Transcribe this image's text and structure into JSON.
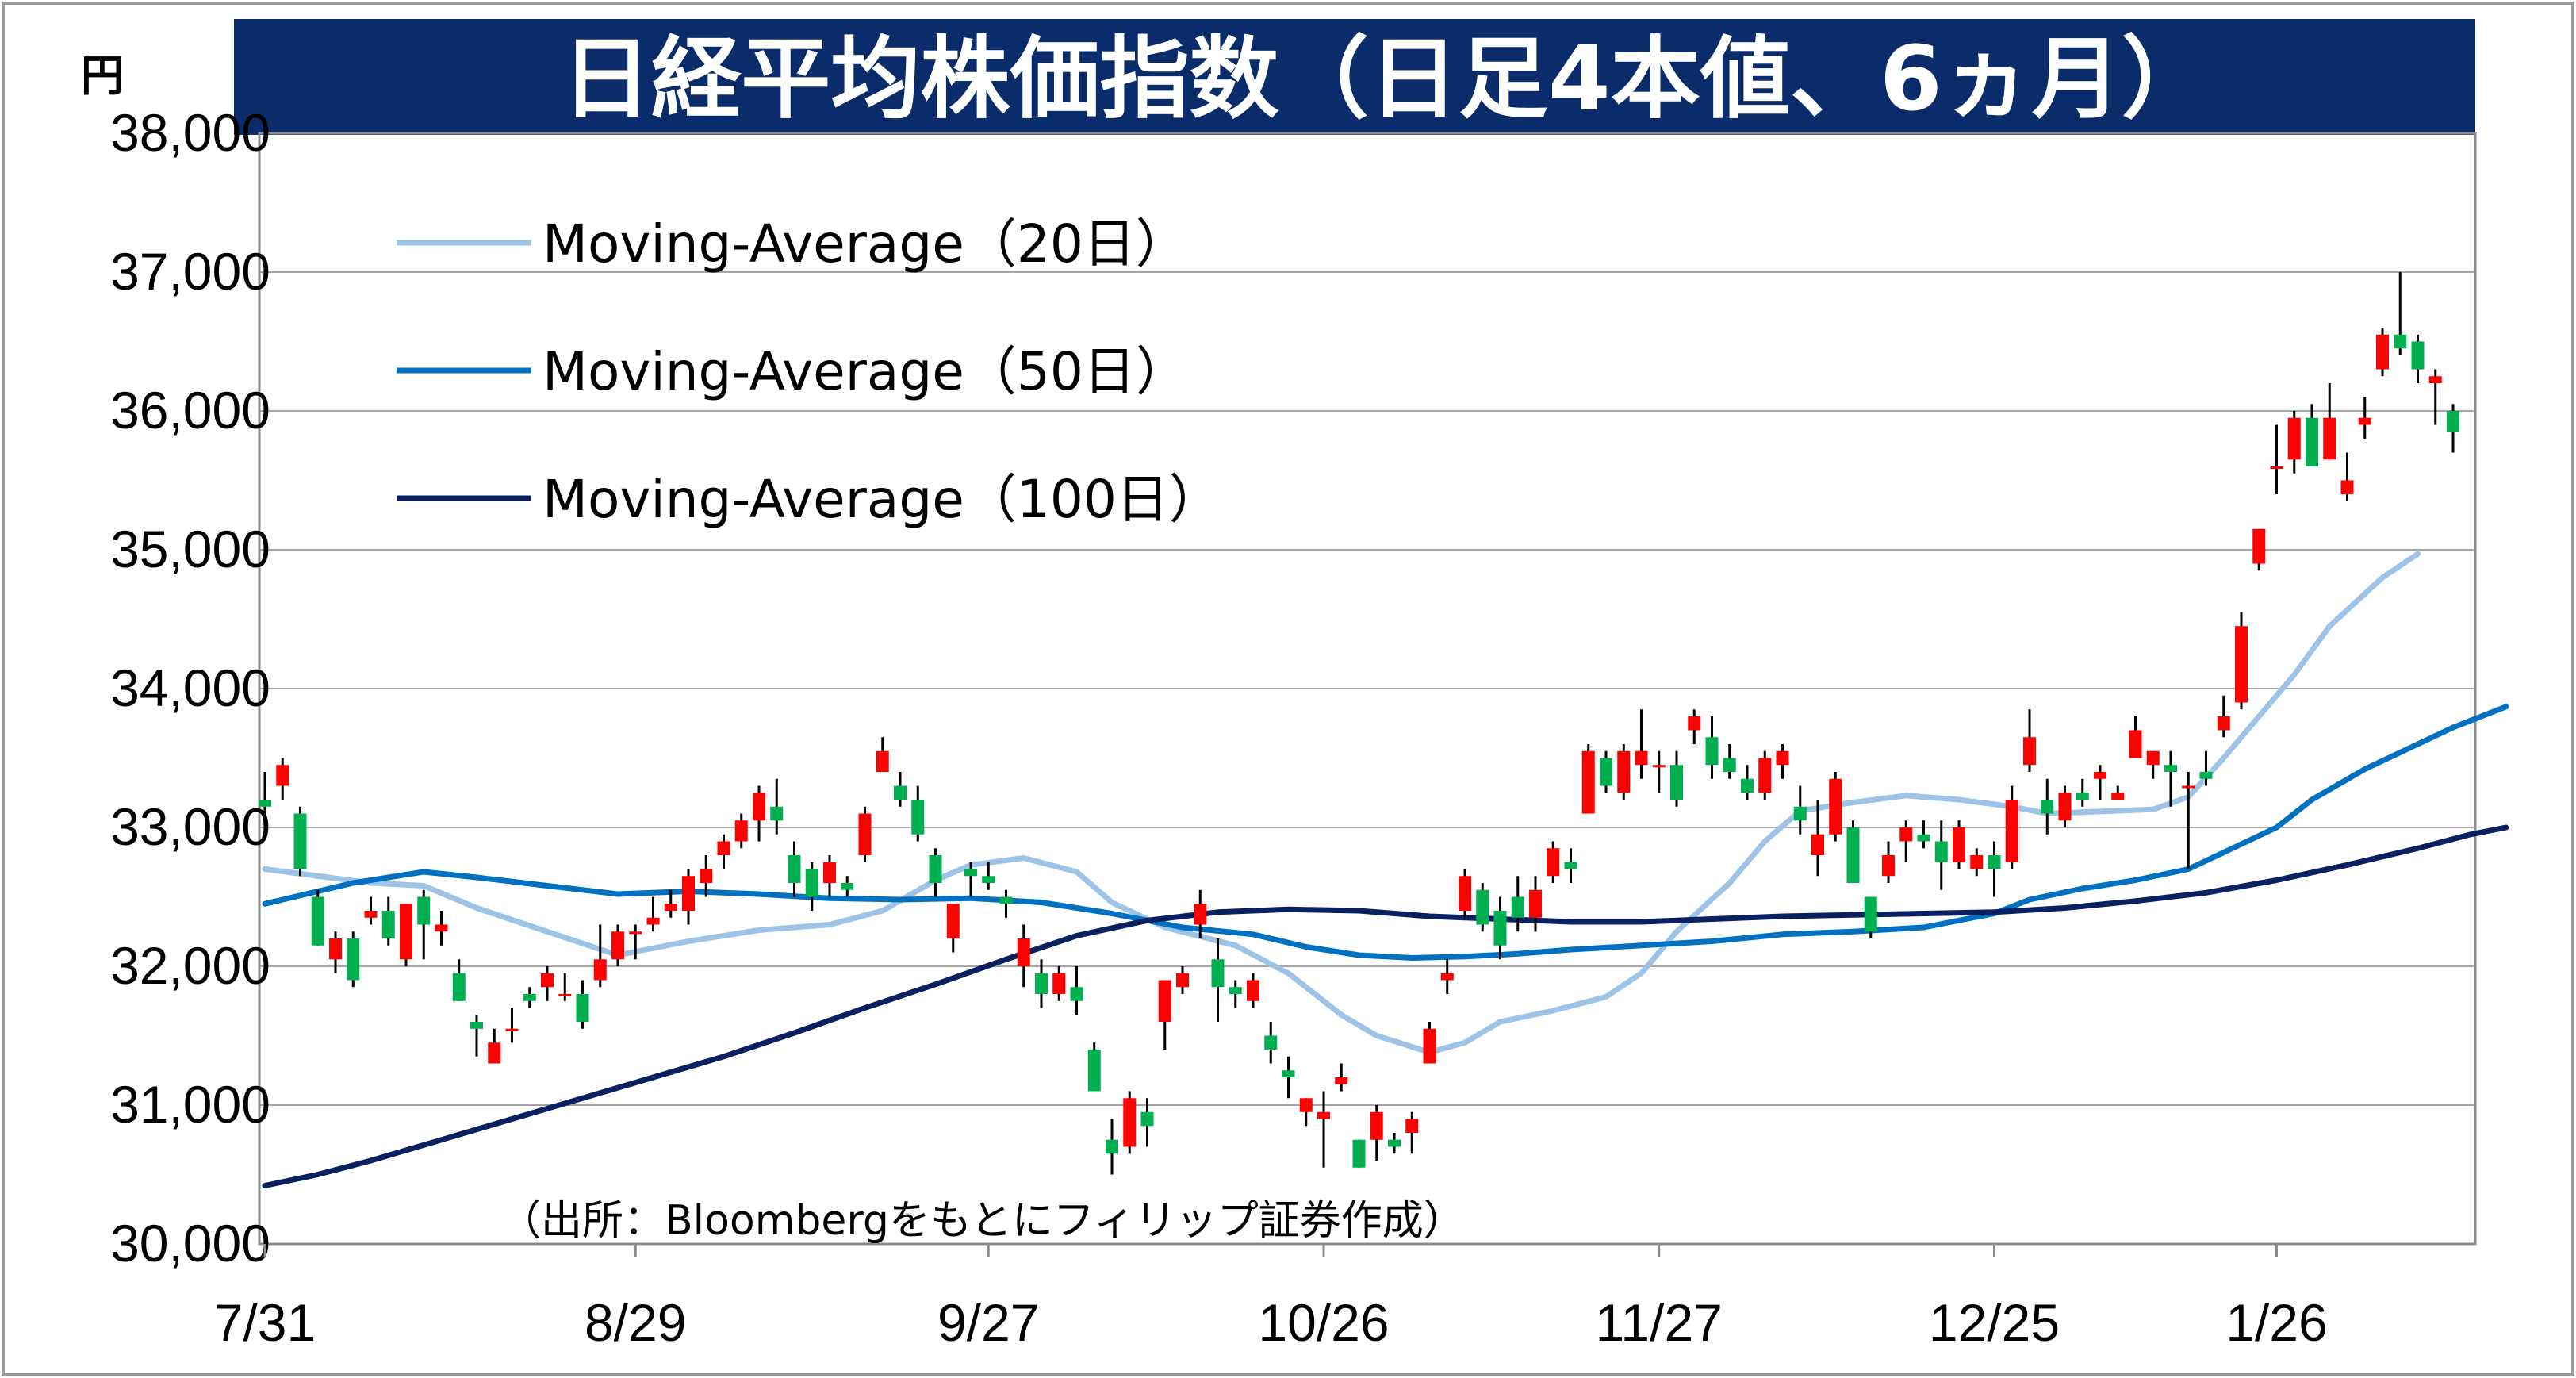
{
  "chart_data": {
    "type": "candlestick",
    "title": "日経平均株価指数（日足4本値、6ヵ月）",
    "y_unit": "円",
    "ylim": [
      30000,
      38000
    ],
    "yticks": [
      "30,000",
      "31,000",
      "32,000",
      "33,000",
      "34,000",
      "35,000",
      "36,000",
      "37,000",
      "38,000"
    ],
    "xticks": [
      {
        "label": "7/31",
        "index": 0
      },
      {
        "label": "8/29",
        "index": 21
      },
      {
        "label": "9/27",
        "index": 41
      },
      {
        "label": "10/26",
        "index": 60
      },
      {
        "label": "11/27",
        "index": 79
      },
      {
        "label": "12/25",
        "index": 98
      },
      {
        "label": "1/26",
        "index": 114
      }
    ],
    "grid": true,
    "legend_position": "top-left",
    "source": "（出所：Bloombergをもとにフィリップ証券作成）",
    "colors": {
      "up": "#ff0000",
      "down": "#00b050",
      "ma20": "#9dc3e6",
      "ma50": "#0070c0",
      "ma100": "#0b2060",
      "title_bg": "#0b2c6b"
    },
    "series": [
      {
        "name": "Moving-Average（20日）",
        "color": "#9dc3e6",
        "values": [
          [
            0,
            32700
          ],
          [
            6,
            32600
          ],
          [
            9,
            32580
          ],
          [
            12,
            32420
          ],
          [
            16,
            32250
          ],
          [
            20,
            32080
          ],
          [
            24,
            32180
          ],
          [
            28,
            32260
          ],
          [
            32,
            32300
          ],
          [
            35,
            32400
          ],
          [
            38,
            32620
          ],
          [
            40,
            32730
          ],
          [
            43,
            32780
          ],
          [
            46,
            32680
          ],
          [
            48,
            32460
          ],
          [
            51,
            32280
          ],
          [
            55,
            32150
          ],
          [
            58,
            31950
          ],
          [
            61,
            31650
          ],
          [
            63,
            31500
          ],
          [
            66,
            31380
          ],
          [
            68,
            31450
          ],
          [
            70,
            31600
          ],
          [
            73,
            31680
          ],
          [
            76,
            31780
          ],
          [
            78,
            31950
          ],
          [
            80,
            32250
          ],
          [
            83,
            32600
          ],
          [
            85,
            32900
          ],
          [
            87,
            33120
          ],
          [
            90,
            33180
          ],
          [
            93,
            33230
          ],
          [
            96,
            33200
          ],
          [
            99,
            33150
          ],
          [
            101,
            33100
          ],
          [
            103,
            33110
          ],
          [
            105,
            33120
          ],
          [
            107,
            33130
          ],
          [
            109,
            33220
          ],
          [
            111,
            33500
          ],
          [
            113,
            33800
          ],
          [
            115,
            34100
          ],
          [
            117,
            34450
          ],
          [
            120,
            34800
          ],
          [
            122,
            34970
          ]
        ]
      },
      {
        "name": "Moving-Average（50日）",
        "color": "#0070c0",
        "values": [
          [
            0,
            32450
          ],
          [
            5,
            32600
          ],
          [
            9,
            32680
          ],
          [
            12,
            32640
          ],
          [
            16,
            32580
          ],
          [
            20,
            32520
          ],
          [
            24,
            32540
          ],
          [
            28,
            32520
          ],
          [
            32,
            32490
          ],
          [
            36,
            32480
          ],
          [
            40,
            32490
          ],
          [
            44,
            32460
          ],
          [
            48,
            32380
          ],
          [
            52,
            32280
          ],
          [
            56,
            32230
          ],
          [
            59,
            32140
          ],
          [
            62,
            32080
          ],
          [
            65,
            32060
          ],
          [
            68,
            32070
          ],
          [
            71,
            32090
          ],
          [
            74,
            32120
          ],
          [
            78,
            32150
          ],
          [
            82,
            32180
          ],
          [
            86,
            32230
          ],
          [
            90,
            32250
          ],
          [
            94,
            32280
          ],
          [
            98,
            32380
          ],
          [
            100,
            32480
          ],
          [
            103,
            32560
          ],
          [
            106,
            32620
          ],
          [
            109,
            32700
          ],
          [
            111,
            32820
          ],
          [
            114,
            33000
          ],
          [
            116,
            33200
          ],
          [
            119,
            33420
          ],
          [
            122,
            33600
          ],
          [
            124,
            33720
          ],
          [
            127,
            33870
          ]
        ]
      },
      {
        "name": "Moving-Average（100日）",
        "color": "#0b2060",
        "values": [
          [
            0,
            30420
          ],
          [
            3,
            30500
          ],
          [
            6,
            30600
          ],
          [
            10,
            30750
          ],
          [
            14,
            30900
          ],
          [
            18,
            31050
          ],
          [
            22,
            31200
          ],
          [
            26,
            31350
          ],
          [
            30,
            31520
          ],
          [
            34,
            31700
          ],
          [
            38,
            31870
          ],
          [
            42,
            32050
          ],
          [
            46,
            32220
          ],
          [
            50,
            32330
          ],
          [
            54,
            32390
          ],
          [
            58,
            32410
          ],
          [
            62,
            32400
          ],
          [
            66,
            32360
          ],
          [
            70,
            32340
          ],
          [
            74,
            32320
          ],
          [
            78,
            32320
          ],
          [
            82,
            32340
          ],
          [
            86,
            32360
          ],
          [
            90,
            32370
          ],
          [
            94,
            32380
          ],
          [
            98,
            32390
          ],
          [
            102,
            32420
          ],
          [
            106,
            32470
          ],
          [
            110,
            32530
          ],
          [
            114,
            32620
          ],
          [
            118,
            32730
          ],
          [
            122,
            32850
          ],
          [
            125,
            32950
          ],
          [
            127,
            33000
          ]
        ]
      }
    ],
    "candles": [
      [
        0,
        33200,
        33400,
        33100,
        33150
      ],
      [
        1,
        33300,
        33500,
        33200,
        33450
      ],
      [
        2,
        33100,
        33150,
        32650,
        32700
      ],
      [
        3,
        32500,
        32550,
        32150,
        32150
      ],
      [
        4,
        32050,
        32250,
        31950,
        32200
      ],
      [
        5,
        32200,
        32250,
        31850,
        31900
      ],
      [
        6,
        32350,
        32500,
        32300,
        32400
      ],
      [
        7,
        32400,
        32500,
        32150,
        32200
      ],
      [
        8,
        32050,
        32450,
        32000,
        32450
      ],
      [
        9,
        32500,
        32550,
        32050,
        32300
      ],
      [
        10,
        32250,
        32400,
        32150,
        32300
      ],
      [
        11,
        31950,
        32050,
        31750,
        31750
      ],
      [
        12,
        31600,
        31650,
        31350,
        31550
      ],
      [
        13,
        31300,
        31550,
        31300,
        31450
      ],
      [
        14,
        31550,
        31700,
        31450,
        31550
      ],
      [
        15,
        31800,
        31850,
        31700,
        31750
      ],
      [
        16,
        31850,
        32000,
        31750,
        31950
      ],
      [
        17,
        31800,
        31950,
        31750,
        31800
      ],
      [
        18,
        31800,
        31900,
        31550,
        31600
      ],
      [
        19,
        31900,
        32300,
        31850,
        32050
      ],
      [
        20,
        32050,
        32300,
        32000,
        32250
      ],
      [
        21,
        32250,
        32300,
        32050,
        32250
      ],
      [
        22,
        32300,
        32500,
        32250,
        32350
      ],
      [
        23,
        32400,
        32550,
        32350,
        32450
      ],
      [
        24,
        32400,
        32700,
        32300,
        32650
      ],
      [
        25,
        32600,
        32800,
        32500,
        32700
      ],
      [
        26,
        32800,
        32950,
        32700,
        32900
      ],
      [
        27,
        32900,
        33100,
        32850,
        33050
      ],
      [
        28,
        33050,
        33300,
        32900,
        33250
      ],
      [
        29,
        33150,
        33350,
        32950,
        33050
      ],
      [
        30,
        32800,
        32900,
        32500,
        32600
      ],
      [
        31,
        32700,
        32750,
        32400,
        32500
      ],
      [
        32,
        32600,
        32800,
        32500,
        32750
      ],
      [
        33,
        32600,
        32650,
        32500,
        32550
      ],
      [
        34,
        32800,
        33150,
        32750,
        33100
      ],
      [
        35,
        33400,
        33650,
        33400,
        33550
      ],
      [
        36,
        33300,
        33400,
        33150,
        33200
      ],
      [
        37,
        33200,
        33300,
        32900,
        32950
      ],
      [
        38,
        32800,
        32850,
        32500,
        32600
      ],
      [
        39,
        32200,
        32450,
        32100,
        32450
      ],
      [
        40,
        32700,
        32750,
        32500,
        32650
      ],
      [
        41,
        32650,
        32750,
        32550,
        32600
      ],
      [
        42,
        32500,
        32550,
        32350,
        32450
      ],
      [
        43,
        32000,
        32300,
        31850,
        32200
      ],
      [
        44,
        31950,
        32050,
        31700,
        31800
      ],
      [
        45,
        31800,
        32000,
        31750,
        31950
      ],
      [
        46,
        31850,
        32000,
        31650,
        31750
      ],
      [
        47,
        31400,
        31450,
        31150,
        31100
      ],
      [
        48,
        30750,
        30900,
        30500,
        30650
      ],
      [
        49,
        30700,
        31100,
        30650,
        31050
      ],
      [
        50,
        30950,
        31050,
        30700,
        30850
      ],
      [
        51,
        31600,
        31900,
        31400,
        31900
      ],
      [
        52,
        31850,
        32000,
        31800,
        31950
      ],
      [
        53,
        32300,
        32550,
        32200,
        32450
      ],
      [
        54,
        32050,
        32200,
        31600,
        31850
      ],
      [
        55,
        31850,
        31900,
        31700,
        31800
      ],
      [
        56,
        31750,
        31950,
        31700,
        31900
      ],
      [
        57,
        31500,
        31600,
        31300,
        31400
      ],
      [
        58,
        31250,
        31350,
        31050,
        31200
      ],
      [
        59,
        30950,
        31050,
        30850,
        31050
      ],
      [
        60,
        30900,
        31100,
        30550,
        30950
      ],
      [
        61,
        31150,
        31300,
        31100,
        31200
      ],
      [
        62,
        30750,
        30750,
        30550,
        30550
      ],
      [
        63,
        30750,
        31000,
        30600,
        30950
      ],
      [
        64,
        30750,
        30800,
        30650,
        30700
      ],
      [
        65,
        30800,
        30950,
        30650,
        30900
      ],
      [
        66,
        31300,
        31600,
        31300,
        31550
      ],
      [
        67,
        31900,
        32050,
        31800,
        31950
      ],
      [
        68,
        32400,
        32700,
        32350,
        32650
      ],
      [
        69,
        32550,
        32600,
        32250,
        32300
      ],
      [
        70,
        32400,
        32500,
        32050,
        32150
      ],
      [
        71,
        32500,
        32650,
        32250,
        32350
      ],
      [
        72,
        32350,
        32650,
        32250,
        32550
      ],
      [
        73,
        32650,
        32900,
        32600,
        32850
      ],
      [
        74,
        32750,
        32850,
        32600,
        32700
      ],
      [
        75,
        33100,
        33600,
        33100,
        33550
      ],
      [
        76,
        33500,
        33550,
        33250,
        33300
      ],
      [
        77,
        33250,
        33600,
        33200,
        33550
      ],
      [
        78,
        33450,
        33850,
        33350,
        33550
      ],
      [
        79,
        33450,
        33550,
        33250,
        33450
      ],
      [
        80,
        33450,
        33550,
        33150,
        33200
      ],
      [
        81,
        33700,
        33850,
        33600,
        33800
      ],
      [
        82,
        33650,
        33800,
        33350,
        33450
      ],
      [
        83,
        33500,
        33600,
        33350,
        33400
      ],
      [
        84,
        33350,
        33450,
        33200,
        33250
      ],
      [
        85,
        33250,
        33550,
        33200,
        33500
      ],
      [
        86,
        33450,
        33600,
        33350,
        33550
      ],
      [
        87,
        33150,
        33300,
        32950,
        33050
      ],
      [
        88,
        32800,
        33200,
        32650,
        32950
      ],
      [
        89,
        32950,
        33400,
        32900,
        33350
      ],
      [
        90,
        33000,
        33050,
        32600,
        32600
      ],
      [
        91,
        32500,
        32500,
        32200,
        32250
      ],
      [
        92,
        32650,
        32900,
        32600,
        32800
      ],
      [
        93,
        32900,
        33050,
        32750,
        33000
      ],
      [
        94,
        32950,
        33050,
        32850,
        32900
      ],
      [
        95,
        32900,
        33050,
        32550,
        32750
      ],
      [
        96,
        32750,
        33050,
        32700,
        33000
      ],
      [
        97,
        32700,
        32850,
        32650,
        32800
      ],
      [
        98,
        32800,
        32900,
        32500,
        32700
      ],
      [
        99,
        32750,
        33300,
        32700,
        33200
      ],
      [
        100,
        33450,
        33850,
        33400,
        33650
      ],
      [
        101,
        33200,
        33350,
        32950,
        33100
      ],
      [
        102,
        33050,
        33300,
        33000,
        33250
      ],
      [
        103,
        33250,
        33350,
        33150,
        33200
      ],
      [
        104,
        33350,
        33450,
        33200,
        33400
      ],
      [
        105,
        33200,
        33300,
        33200,
        33250
      ],
      [
        106,
        33500,
        33800,
        33500,
        33700
      ],
      [
        107,
        33450,
        33550,
        33350,
        33550
      ],
      [
        108,
        33450,
        33550,
        33150,
        33400
      ],
      [
        109,
        33300,
        33400,
        32700,
        33300
      ],
      [
        110,
        33400,
        33550,
        33300,
        33350
      ],
      [
        111,
        33700,
        33950,
        33650,
        33800
      ],
      [
        112,
        33900,
        34550,
        33850,
        34450
      ],
      [
        113,
        34900,
        35150,
        34850,
        35150
      ],
      [
        114,
        35600,
        35900,
        35400,
        35600
      ],
      [
        115,
        35650,
        36000,
        35550,
        35950
      ],
      [
        116,
        35950,
        36050,
        35650,
        35600
      ],
      [
        117,
        35650,
        36200,
        35650,
        35950
      ],
      [
        118,
        35400,
        35700,
        35350,
        35500
      ],
      [
        119,
        35900,
        36100,
        35800,
        35950
      ],
      [
        120,
        36300,
        36600,
        36250,
        36550
      ],
      [
        121,
        36550,
        37000,
        36400,
        36450
      ],
      [
        122,
        36500,
        36550,
        36200,
        36300
      ],
      [
        123,
        36200,
        36300,
        35900,
        36250
      ],
      [
        124,
        36000,
        36050,
        35700,
        35850
      ]
    ]
  }
}
